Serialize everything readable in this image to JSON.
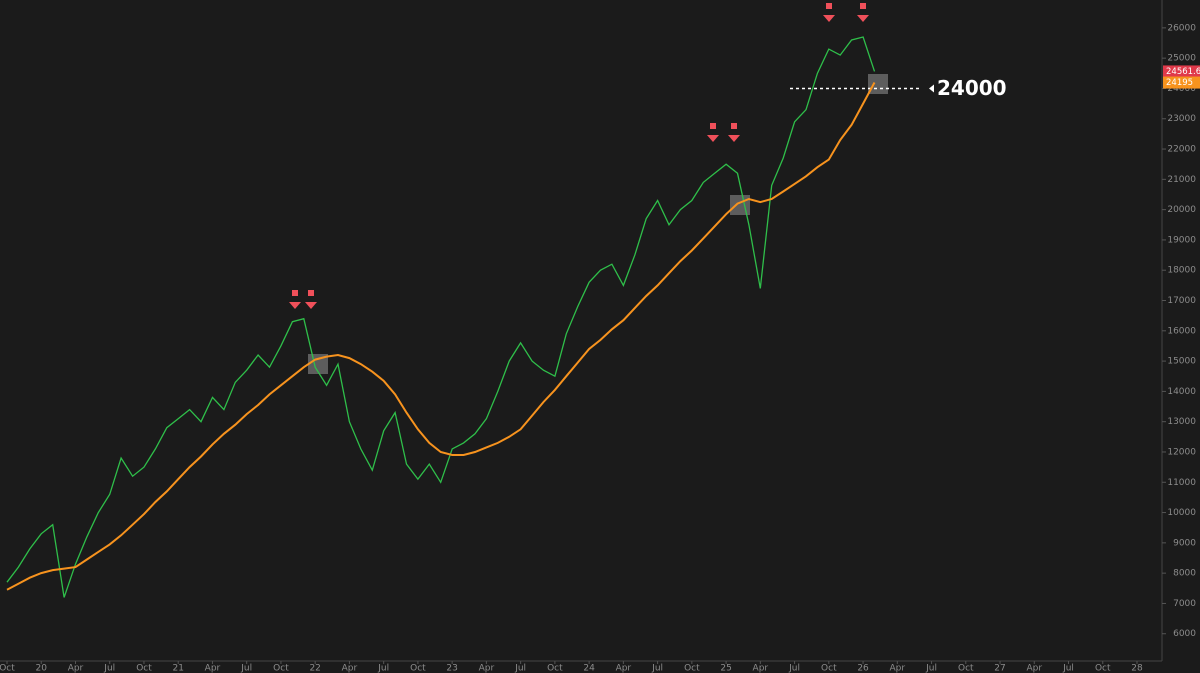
{
  "chart_data": {
    "type": "line",
    "categories": [
      "Oct",
      null,
      null,
      "20",
      null,
      null,
      "Apr",
      null,
      null,
      "Jul",
      null,
      null,
      "Oct",
      null,
      null,
      "21",
      null,
      null,
      "Apr",
      null,
      null,
      "Jul",
      null,
      null,
      "Oct",
      null,
      null,
      "22",
      null,
      null,
      "Apr",
      null,
      null,
      "Jul",
      null,
      null,
      "Oct",
      null,
      null,
      "23",
      null,
      null,
      "Apr",
      null,
      null,
      "Jul",
      null,
      null,
      "Oct",
      null,
      null,
      "24",
      null,
      null,
      "Apr",
      null,
      null,
      "Jul",
      null,
      null,
      "Oct",
      null,
      null,
      "25",
      null,
      null,
      "Apr",
      null,
      null,
      "Jul",
      null,
      null,
      "Oct",
      null,
      null,
      "26",
      null,
      null,
      "Apr",
      null,
      null,
      "Jul",
      null,
      null,
      "Oct",
      null,
      null,
      "27",
      null,
      null,
      "Apr",
      null,
      null,
      "Jul",
      null,
      null,
      "Oct",
      null,
      null,
      "28"
    ],
    "series": [
      {
        "color": "#2fbf4a",
        "values": [
          7700,
          8200,
          8800,
          9300,
          9600,
          7200,
          8300,
          9200,
          10000,
          10600,
          11800,
          11200,
          11500,
          12100,
          12800,
          13100,
          13400,
          13000,
          13800,
          13400,
          14300,
          14700,
          15200,
          14800,
          15500,
          16300,
          16400,
          14800,
          14200,
          14900,
          13000,
          12100,
          11400,
          12700,
          13300,
          11600,
          11100,
          11600,
          11000,
          12100,
          12300,
          12600,
          13100,
          14000,
          15000,
          15600,
          15000,
          14700,
          14500,
          15900,
          16800,
          17600,
          18000,
          18200,
          17500,
          18500,
          19700,
          20300,
          19500,
          20000,
          20300,
          20900,
          21200,
          21500,
          21200,
          19500,
          17400,
          20800,
          21700,
          22900,
          23300,
          24500,
          25300,
          25100,
          25600,
          25700,
          24561.63,
          null,
          null,
          null,
          null,
          null,
          null,
          null,
          null,
          null,
          null,
          null,
          null,
          null,
          null,
          null,
          null,
          null,
          null,
          null,
          null,
          null,
          null,
          null
        ]
      },
      {
        "color": "#f7931e",
        "values": [
          7450,
          7650,
          7850,
          8000,
          8100,
          8150,
          8200,
          8450,
          8700,
          8950,
          9250,
          9600,
          9950,
          10350,
          10700,
          11100,
          11500,
          11850,
          12250,
          12600,
          12900,
          13250,
          13550,
          13900,
          14200,
          14500,
          14800,
          15050,
          15150,
          15200,
          15100,
          14900,
          14650,
          14350,
          13900,
          13300,
          12750,
          12300,
          12000,
          11900,
          11900,
          12000,
          12150,
          12300,
          12500,
          12750,
          13200,
          13650,
          14050,
          14500,
          14950,
          15400,
          15700,
          16050,
          16350,
          16750,
          17150,
          17500,
          17900,
          18300,
          18650,
          19050,
          19450,
          19850,
          20200,
          20350,
          20250,
          20350,
          20600,
          20850,
          21100,
          21400,
          21650,
          22300,
          22800,
          23500,
          24195,
          null,
          null,
          null,
          null,
          null,
          null,
          null,
          null,
          null,
          null,
          null,
          null,
          null,
          null,
          null,
          null,
          null,
          null,
          null,
          null,
          null,
          null,
          null
        ]
      }
    ],
    "ylim": [
      5100,
      26920
    ],
    "yticks": [
      6000,
      7000,
      8000,
      9000,
      10000,
      11000,
      12000,
      13000,
      14000,
      15000,
      16000,
      17000,
      18000,
      19000,
      20000,
      21000,
      22000,
      23000,
      24000,
      25000,
      26000
    ],
    "level": 24000
  }
}
